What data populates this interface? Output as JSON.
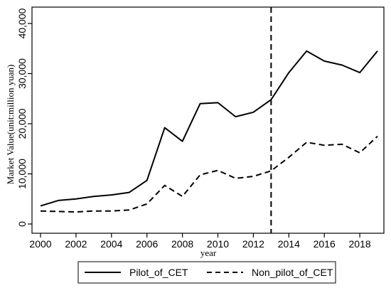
{
  "chart_data": {
    "type": "line",
    "title": "",
    "xlabel": "year",
    "ylabel": "Market Value(unit:million yuan)",
    "xlim": [
      2000,
      2019
    ],
    "ylim": [
      0,
      40000
    ],
    "x_ticks": [
      2000,
      2002,
      2004,
      2006,
      2008,
      2010,
      2012,
      2014,
      2016,
      2018
    ],
    "x_tick_labels": [
      "2000",
      "2002",
      "2004",
      "2006",
      "2008",
      "2010",
      "2012",
      "2014",
      "2016",
      "2018"
    ],
    "y_ticks": [
      0,
      10000,
      20000,
      30000,
      40000
    ],
    "y_tick_labels": [
      "0",
      "10,000",
      "20,000",
      "30,000",
      "40,000"
    ],
    "grid": false,
    "legend_position": "bottom",
    "x": [
      2000,
      2001,
      2002,
      2003,
      2004,
      2005,
      2006,
      2007,
      2008,
      2009,
      2010,
      2011,
      2012,
      2013,
      2014,
      2015,
      2016,
      2017,
      2018,
      2019
    ],
    "series": [
      {
        "name": "Pilot_of_CET",
        "style": "solid",
        "color": "#000000",
        "values": [
          3600,
          4700,
          5000,
          5500,
          5800,
          6300,
          8700,
          19200,
          16500,
          24000,
          24200,
          21400,
          22300,
          24800,
          30200,
          34500,
          32500,
          31700,
          30200,
          34500
        ]
      },
      {
        "name": "Non_pilot_of_CET",
        "style": "dashed",
        "color": "#000000",
        "values": [
          2600,
          2500,
          2400,
          2600,
          2600,
          2800,
          4000,
          7700,
          5500,
          9800,
          10700,
          9100,
          9500,
          10600,
          13300,
          16300,
          15700,
          15900,
          14200,
          17500
        ]
      }
    ],
    "vertical_reference_line": {
      "x": 2013,
      "style": "dashed",
      "color": "#000000"
    }
  }
}
